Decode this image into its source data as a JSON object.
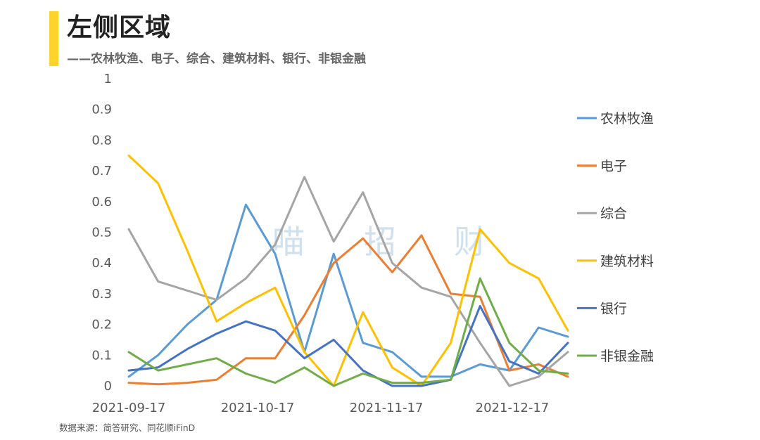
{
  "header": {
    "title": "左侧区域",
    "subtitle": "——农林牧渔、电子、综合、建筑材料、银行、非银金融"
  },
  "footer": {
    "source": "数据来源：简答研究、同花顺iFinD"
  },
  "watermark": [
    "喵",
    "招",
    "财"
  ],
  "colors": {
    "accent": "#FFD42A"
  },
  "chart_data": {
    "type": "line",
    "title": "左侧区域",
    "xlabel": "",
    "ylabel": "",
    "ylim": [
      0,
      1
    ],
    "yticks": [
      0,
      0.1,
      0.2,
      0.3,
      0.4,
      0.5,
      0.6,
      0.7,
      0.8,
      0.9,
      1
    ],
    "ytick_labels": [
      "0",
      "0.1",
      "0.2",
      "0.3",
      "0.4",
      "0.5",
      "0.6",
      "0.7",
      "0.8",
      "0.9",
      "1"
    ],
    "x": [
      "2021-09-17",
      "2021-09-24",
      "2021-10-08",
      "2021-10-15",
      "2021-10-22",
      "2021-10-29",
      "2021-11-05",
      "2021-11-12",
      "2021-11-19",
      "2021-11-26",
      "2021-12-03",
      "2021-12-10",
      "2021-12-17",
      "2021-12-24",
      "2021-12-31",
      "2022-01-07"
    ],
    "xtick_labels": [
      {
        "index": 0,
        "label": "2021-09-17"
      },
      {
        "index": 4.4,
        "label": "2021-10-17"
      },
      {
        "index": 8.8,
        "label": "2021-11-17"
      },
      {
        "index": 13.1,
        "label": "2021-12-17"
      }
    ],
    "grid": false,
    "legend_position": "right",
    "series": [
      {
        "name": "农林牧渔",
        "color": "#5B9BD5",
        "values": [
          0.03,
          0.1,
          0.2,
          0.28,
          0.59,
          0.43,
          0.11,
          0.43,
          0.14,
          0.11,
          0.03,
          0.03,
          0.07,
          0.05,
          0.19,
          0.16
        ]
      },
      {
        "name": "电子",
        "color": "#ED7D31",
        "values": [
          0.01,
          0.005,
          0.01,
          0.02,
          0.09,
          0.09,
          0.23,
          0.4,
          0.48,
          0.37,
          0.49,
          0.3,
          0.29,
          0.05,
          0.07,
          0.03
        ]
      },
      {
        "name": "综合",
        "color": "#A5A5A5",
        "values": [
          0.51,
          0.34,
          0.31,
          0.28,
          0.35,
          0.46,
          0.68,
          0.47,
          0.63,
          0.4,
          0.32,
          0.29,
          0.14,
          0.0,
          0.03,
          0.11
        ]
      },
      {
        "name": "建筑材料",
        "color": "#FFC000",
        "values": [
          0.75,
          0.66,
          0.44,
          0.21,
          0.27,
          0.32,
          0.11,
          0.0,
          0.24,
          0.06,
          0.0,
          0.14,
          0.51,
          0.4,
          0.35,
          0.18
        ]
      },
      {
        "name": "银行",
        "color": "#4472C4",
        "values": [
          0.05,
          0.06,
          0.12,
          0.17,
          0.21,
          0.18,
          0.09,
          0.15,
          0.05,
          0.0,
          0.0,
          0.02,
          0.26,
          0.08,
          0.04,
          0.14
        ]
      },
      {
        "name": "非银金融",
        "color": "#70AD47",
        "values": [
          0.11,
          0.05,
          0.07,
          0.09,
          0.04,
          0.01,
          0.06,
          0.0,
          0.04,
          0.01,
          0.01,
          0.02,
          0.35,
          0.14,
          0.05,
          0.04
        ]
      }
    ]
  }
}
